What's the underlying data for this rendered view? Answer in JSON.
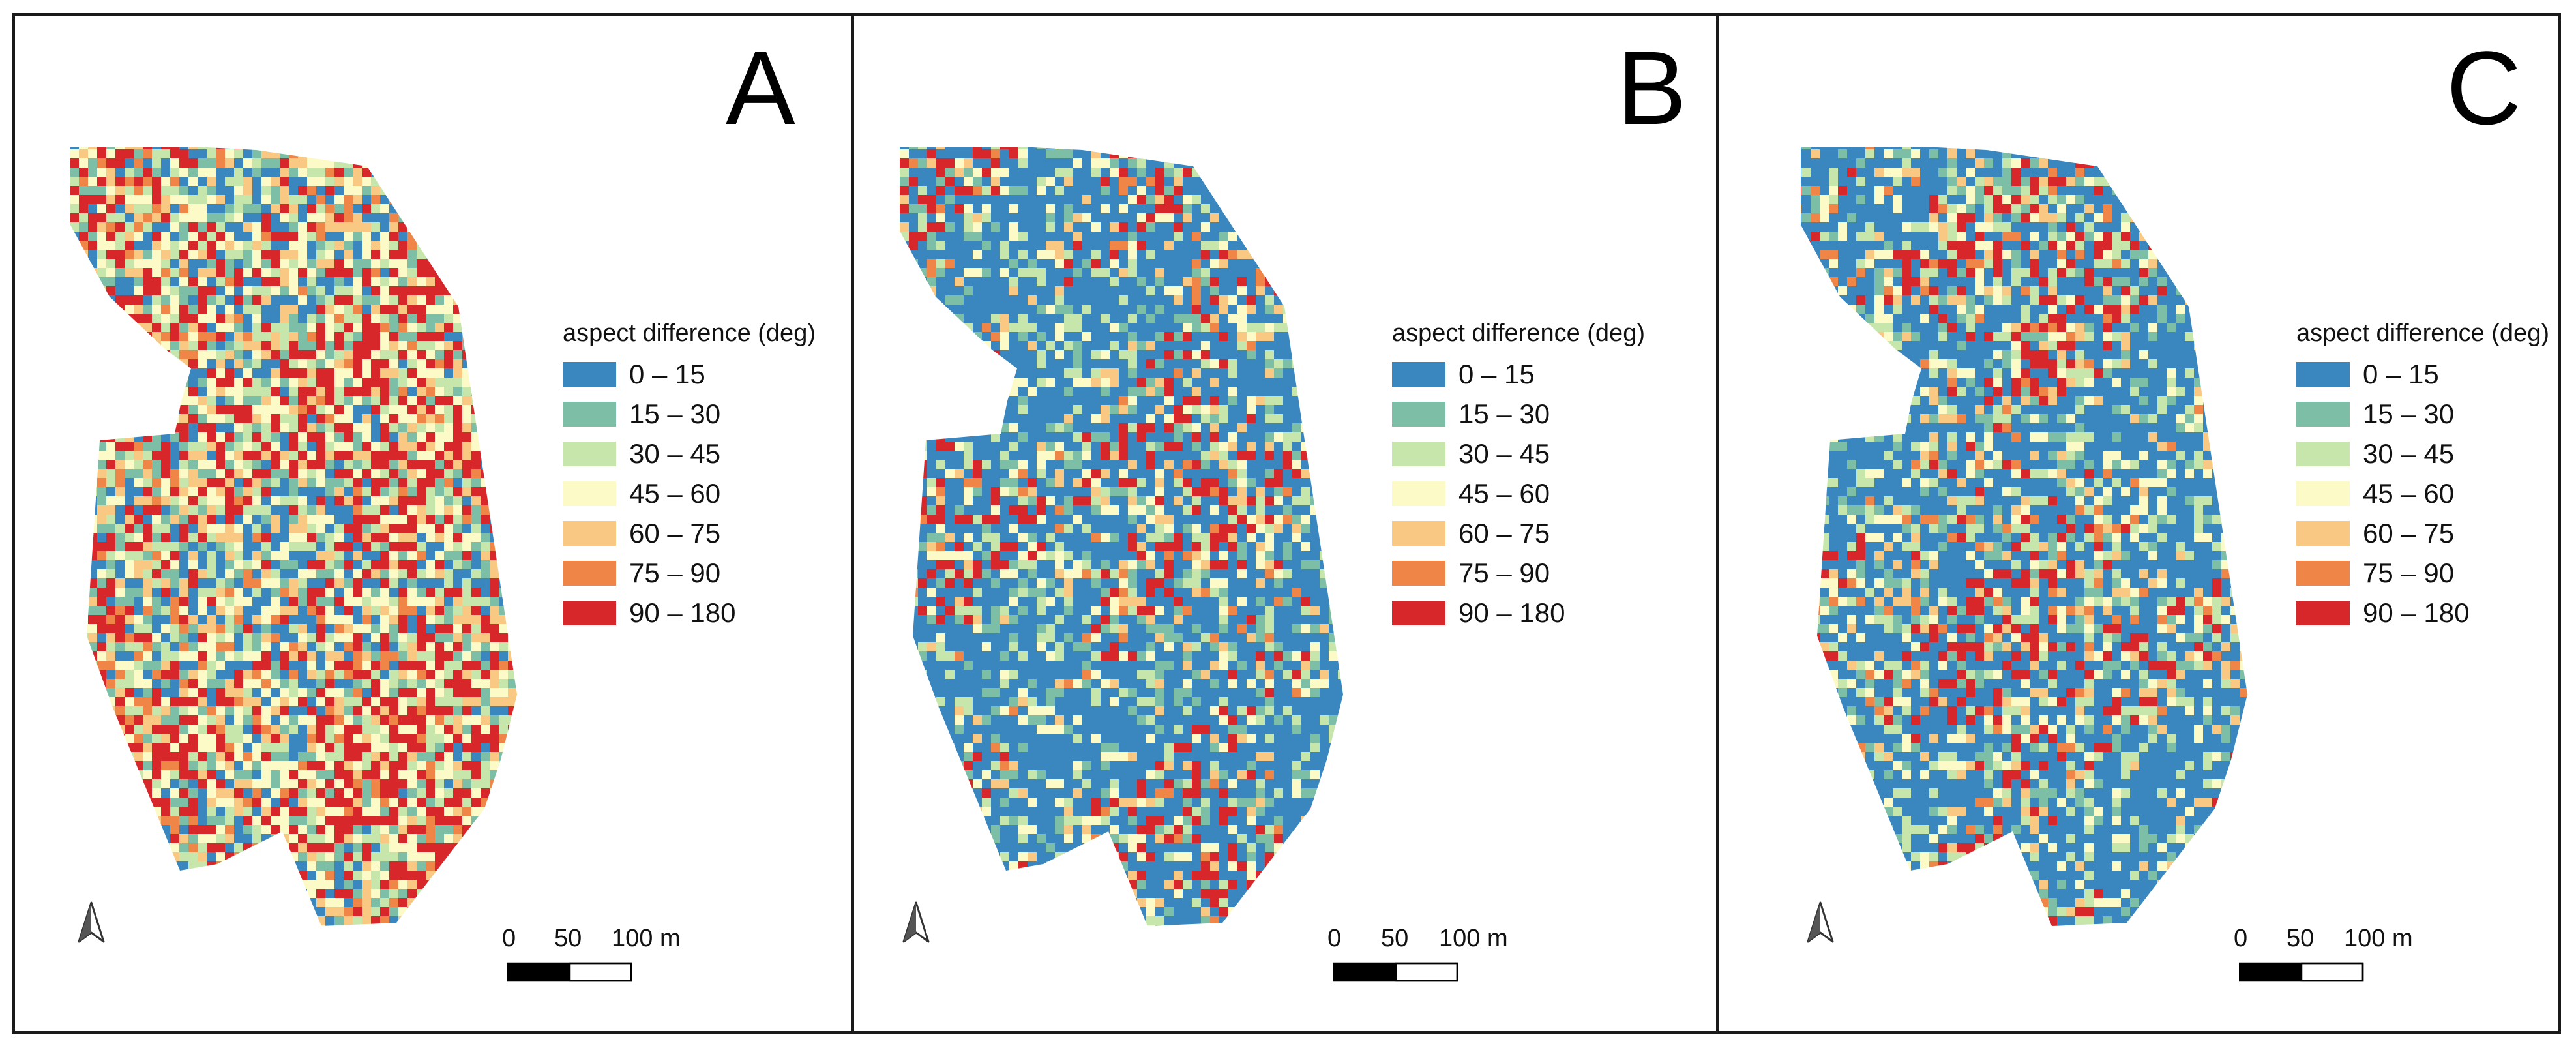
{
  "figure": {
    "panels": [
      {
        "letter": "A"
      },
      {
        "letter": "B"
      },
      {
        "letter": "C"
      }
    ]
  },
  "legend": {
    "title": "aspect difference (deg)",
    "classes": [
      {
        "label": "0 – 15",
        "color": "#3a87c0"
      },
      {
        "label": "15 – 30",
        "color": "#7dbfa6"
      },
      {
        "label": "30 – 45",
        "color": "#c6e6ab"
      },
      {
        "label": "45 – 60",
        "color": "#fcfbc8"
      },
      {
        "label": "60 – 75",
        "color": "#f9c882"
      },
      {
        "label": "75 – 90",
        "color": "#ef8647"
      },
      {
        "label": "90 – 180",
        "color": "#d7272b"
      }
    ]
  },
  "scale_bar": {
    "labels": [
      "0",
      "50",
      "100 m"
    ]
  },
  "icons": {
    "north_arrow": "north-arrow-icon"
  }
}
